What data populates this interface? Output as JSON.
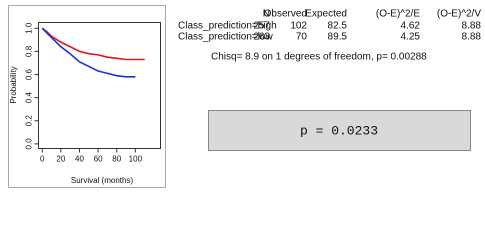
{
  "chart_data": {
    "type": "line",
    "x": [
      0,
      5,
      10,
      20,
      30,
      40,
      50,
      60,
      70,
      80,
      90,
      100,
      110
    ],
    "series": [
      {
        "color": "#e8141a",
        "values": [
          1.0,
          0.97,
          0.93,
          0.88,
          0.84,
          0.8,
          0.78,
          0.77,
          0.75,
          0.74,
          0.73,
          0.73,
          0.73
        ]
      },
      {
        "color": "#1433e0",
        "values": [
          1.0,
          0.96,
          0.92,
          0.84,
          0.78,
          0.71,
          0.67,
          0.63,
          0.61,
          0.59,
          0.58,
          0.58,
          null
        ]
      }
    ],
    "xlabel": "Survival (months)",
    "ylabel": "Probability",
    "xlim": [
      -4,
      127
    ],
    "ylim": [
      -0.04,
      1.05
    ],
    "xticks": [
      0,
      20,
      40,
      60,
      80,
      100
    ],
    "yticks": [
      {
        "value": 0,
        "label": "0.0"
      },
      {
        "value": 0.2,
        "label": "0.2"
      },
      {
        "value": 0.4,
        "label": "0.4"
      },
      {
        "value": 0.6,
        "label": "0.6"
      },
      {
        "value": 0.8,
        "label": "0.8"
      },
      {
        "value": 1,
        "label": "1.0"
      }
    ]
  },
  "table": {
    "columns": [
      "N",
      "Observed",
      "Expected",
      "(O-E)^2/E",
      "(O-E)^2/V"
    ],
    "rows": [
      [
        "Class_prediction=high",
        "257",
        "102",
        "82.5",
        "4.62",
        "8.88"
      ],
      [
        "Class_prediction=low",
        "263",
        "70",
        "89.5",
        "4.25",
        "8.88"
      ]
    ]
  },
  "chisq": "Chisq= 8.9  on 1 degrees of freedom, p= 0.00288",
  "pvalue": "p = 0.0233"
}
